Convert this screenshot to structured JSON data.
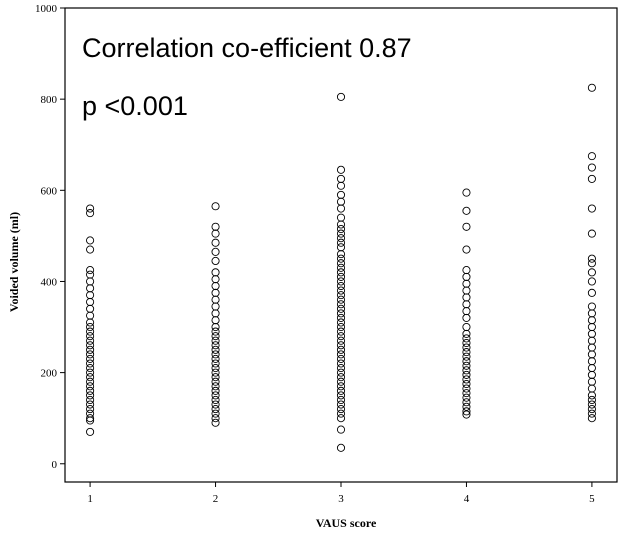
{
  "chart_data": {
    "type": "scatter",
    "title": "",
    "xlabel": "VAUS score",
    "ylabel": "Voided volume (ml)",
    "xlim": [
      0.8,
      5.2
    ],
    "ylim": [
      -40,
      1000
    ],
    "x_ticks": [
      1,
      2,
      3,
      4,
      5
    ],
    "y_ticks": [
      0,
      200,
      400,
      600,
      800,
      1000
    ],
    "grid": false,
    "legend": "none",
    "marker": "open-circle",
    "annotations": [
      "Correlation co-efficient 0.87",
      "p <0.001"
    ],
    "series": [
      {
        "points": [
          [
            1,
            560
          ],
          [
            1,
            550
          ],
          [
            1,
            490
          ],
          [
            1,
            470
          ],
          [
            1,
            425
          ],
          [
            1,
            415
          ],
          [
            1,
            400
          ],
          [
            1,
            385
          ],
          [
            1,
            370
          ],
          [
            1,
            355
          ],
          [
            1,
            340
          ],
          [
            1,
            325
          ],
          [
            1,
            310
          ],
          [
            1,
            300
          ],
          [
            1,
            290
          ],
          [
            1,
            280
          ],
          [
            1,
            270
          ],
          [
            1,
            260
          ],
          [
            1,
            250
          ],
          [
            1,
            240
          ],
          [
            1,
            230
          ],
          [
            1,
            220
          ],
          [
            1,
            210
          ],
          [
            1,
            200
          ],
          [
            1,
            190
          ],
          [
            1,
            180
          ],
          [
            1,
            170
          ],
          [
            1,
            160
          ],
          [
            1,
            150
          ],
          [
            1,
            140
          ],
          [
            1,
            130
          ],
          [
            1,
            120
          ],
          [
            1,
            110
          ],
          [
            1,
            100
          ],
          [
            1,
            95
          ],
          [
            1,
            70
          ],
          [
            2,
            565
          ],
          [
            2,
            520
          ],
          [
            2,
            505
          ],
          [
            2,
            485
          ],
          [
            2,
            465
          ],
          [
            2,
            445
          ],
          [
            2,
            420
          ],
          [
            2,
            405
          ],
          [
            2,
            390
          ],
          [
            2,
            375
          ],
          [
            2,
            360
          ],
          [
            2,
            345
          ],
          [
            2,
            330
          ],
          [
            2,
            315
          ],
          [
            2,
            300
          ],
          [
            2,
            290
          ],
          [
            2,
            280
          ],
          [
            2,
            270
          ],
          [
            2,
            260
          ],
          [
            2,
            250
          ],
          [
            2,
            240
          ],
          [
            2,
            230
          ],
          [
            2,
            220
          ],
          [
            2,
            210
          ],
          [
            2,
            200
          ],
          [
            2,
            190
          ],
          [
            2,
            180
          ],
          [
            2,
            170
          ],
          [
            2,
            160
          ],
          [
            2,
            150
          ],
          [
            2,
            140
          ],
          [
            2,
            130
          ],
          [
            2,
            120
          ],
          [
            2,
            110
          ],
          [
            2,
            100
          ],
          [
            2,
            90
          ],
          [
            3,
            805
          ],
          [
            3,
            645
          ],
          [
            3,
            625
          ],
          [
            3,
            610
          ],
          [
            3,
            590
          ],
          [
            3,
            575
          ],
          [
            3,
            560
          ],
          [
            3,
            540
          ],
          [
            3,
            525
          ],
          [
            3,
            515
          ],
          [
            3,
            505
          ],
          [
            3,
            495
          ],
          [
            3,
            485
          ],
          [
            3,
            475
          ],
          [
            3,
            460
          ],
          [
            3,
            450
          ],
          [
            3,
            440
          ],
          [
            3,
            430
          ],
          [
            3,
            420
          ],
          [
            3,
            410
          ],
          [
            3,
            400
          ],
          [
            3,
            390
          ],
          [
            3,
            380
          ],
          [
            3,
            370
          ],
          [
            3,
            360
          ],
          [
            3,
            350
          ],
          [
            3,
            340
          ],
          [
            3,
            330
          ],
          [
            3,
            320
          ],
          [
            3,
            310
          ],
          [
            3,
            300
          ],
          [
            3,
            290
          ],
          [
            3,
            280
          ],
          [
            3,
            270
          ],
          [
            3,
            260
          ],
          [
            3,
            250
          ],
          [
            3,
            240
          ],
          [
            3,
            230
          ],
          [
            3,
            220
          ],
          [
            3,
            210
          ],
          [
            3,
            200
          ],
          [
            3,
            190
          ],
          [
            3,
            180
          ],
          [
            3,
            170
          ],
          [
            3,
            160
          ],
          [
            3,
            150
          ],
          [
            3,
            140
          ],
          [
            3,
            130
          ],
          [
            3,
            120
          ],
          [
            3,
            110
          ],
          [
            3,
            100
          ],
          [
            3,
            75
          ],
          [
            3,
            35
          ],
          [
            4,
            595
          ],
          [
            4,
            555
          ],
          [
            4,
            520
          ],
          [
            4,
            470
          ],
          [
            4,
            425
          ],
          [
            4,
            410
          ],
          [
            4,
            395
          ],
          [
            4,
            380
          ],
          [
            4,
            365
          ],
          [
            4,
            350
          ],
          [
            4,
            335
          ],
          [
            4,
            320
          ],
          [
            4,
            300
          ],
          [
            4,
            285
          ],
          [
            4,
            275
          ],
          [
            4,
            265
          ],
          [
            4,
            255
          ],
          [
            4,
            245
          ],
          [
            4,
            235
          ],
          [
            4,
            225
          ],
          [
            4,
            215
          ],
          [
            4,
            205
          ],
          [
            4,
            195
          ],
          [
            4,
            185
          ],
          [
            4,
            175
          ],
          [
            4,
            165
          ],
          [
            4,
            155
          ],
          [
            4,
            145
          ],
          [
            4,
            135
          ],
          [
            4,
            125
          ],
          [
            4,
            115
          ],
          [
            4,
            108
          ],
          [
            5,
            825
          ],
          [
            5,
            675
          ],
          [
            5,
            650
          ],
          [
            5,
            625
          ],
          [
            5,
            560
          ],
          [
            5,
            505
          ],
          [
            5,
            450
          ],
          [
            5,
            440
          ],
          [
            5,
            420
          ],
          [
            5,
            400
          ],
          [
            5,
            375
          ],
          [
            5,
            345
          ],
          [
            5,
            330
          ],
          [
            5,
            315
          ],
          [
            5,
            300
          ],
          [
            5,
            285
          ],
          [
            5,
            270
          ],
          [
            5,
            255
          ],
          [
            5,
            240
          ],
          [
            5,
            225
          ],
          [
            5,
            210
          ],
          [
            5,
            195
          ],
          [
            5,
            180
          ],
          [
            5,
            165
          ],
          [
            5,
            150
          ],
          [
            5,
            140
          ],
          [
            5,
            130
          ],
          [
            5,
            120
          ],
          [
            5,
            110
          ],
          [
            5,
            100
          ]
        ]
      }
    ]
  }
}
